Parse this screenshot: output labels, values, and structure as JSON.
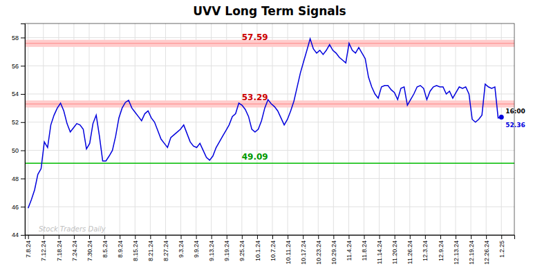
{
  "chart_data": {
    "type": "line",
    "title": "UVV Long Term Signals",
    "series": [
      {
        "name": "UVV",
        "color": "#0000dd",
        "values": [
          45.9,
          46.5,
          47.2,
          48.3,
          48.7,
          50.6,
          50.2,
          51.8,
          52.5,
          53.0,
          53.35,
          52.8,
          51.9,
          51.3,
          51.6,
          51.9,
          51.8,
          51.5,
          50.1,
          50.5,
          51.9,
          52.5,
          51.0,
          49.25,
          49.25,
          49.6,
          50.0,
          51.0,
          52.3,
          53.0,
          53.4,
          53.55,
          53.0,
          52.7,
          52.4,
          52.1,
          52.6,
          52.8,
          52.3,
          52.0,
          51.4,
          50.8,
          50.5,
          50.2,
          50.9,
          51.1,
          51.3,
          51.5,
          51.8,
          51.2,
          50.6,
          50.3,
          50.2,
          50.5,
          50.0,
          49.5,
          49.3,
          49.6,
          50.2,
          50.6,
          51.0,
          51.4,
          51.8,
          52.4,
          52.6,
          53.35,
          53.2,
          52.9,
          52.4,
          51.5,
          51.3,
          51.5,
          52.1,
          53.0,
          53.6,
          53.3,
          53.1,
          52.8,
          52.3,
          51.8,
          52.2,
          52.8,
          53.5,
          54.5,
          55.5,
          56.3,
          57.1,
          57.92,
          57.2,
          56.9,
          57.1,
          56.8,
          57.1,
          57.5,
          57.1,
          56.9,
          56.6,
          56.4,
          56.2,
          57.6,
          57.1,
          56.9,
          57.3,
          56.9,
          56.5,
          55.2,
          54.5,
          54.0,
          53.7,
          54.5,
          54.6,
          54.6,
          54.3,
          54.1,
          53.6,
          54.4,
          54.5,
          53.2,
          53.6,
          54.0,
          54.5,
          54.6,
          54.4,
          53.6,
          54.2,
          54.5,
          54.6,
          54.5,
          54.5,
          54.0,
          54.2,
          53.7,
          54.1,
          54.5,
          54.4,
          54.5,
          54.0,
          52.2,
          52.0,
          52.2,
          52.5,
          54.7,
          54.5,
          54.4,
          54.5,
          52.3,
          52.36
        ]
      }
    ],
    "xlim": [
      -1,
      150
    ],
    "xticks": [
      {
        "value": 0,
        "label": "7.8.24"
      },
      {
        "value": 4.709677419,
        "label": "7.12.24"
      },
      {
        "value": 9.419354839,
        "label": "7.18.24"
      },
      {
        "value": 14.12903226,
        "label": "7.24.24"
      },
      {
        "value": 18.83870968,
        "label": "7.30.24"
      },
      {
        "value": 23.5483871,
        "label": "8.5.24"
      },
      {
        "value": 28.25806452,
        "label": "8.9.24"
      },
      {
        "value": 32.96774194,
        "label": "8.15.24"
      },
      {
        "value": 37.67741935,
        "label": "8.21.24"
      },
      {
        "value": 42.38709677,
        "label": "8.27.24"
      },
      {
        "value": 47.09677419,
        "label": "9.3.24"
      },
      {
        "value": 51.80645161,
        "label": "9.9.24"
      },
      {
        "value": 56.51612903,
        "label": "9.13.24"
      },
      {
        "value": 61.22580645,
        "label": "9.19.24"
      },
      {
        "value": 65.93548387,
        "label": "9.25.24"
      },
      {
        "value": 70.64516129,
        "label": "10.1.24"
      },
      {
        "value": 75.35483871,
        "label": "10.7.24"
      },
      {
        "value": 80.06451613,
        "label": "10.11.24"
      },
      {
        "value": 84.77419355,
        "label": "10.17.24"
      },
      {
        "value": 89.48387097,
        "label": "10.23.24"
      },
      {
        "value": 94.19354839,
        "label": "10.29.24"
      },
      {
        "value": 98.90322581,
        "label": "11.4.24"
      },
      {
        "value": 103.6129032,
        "label": "11.8.24"
      },
      {
        "value": 108.3225806,
        "label": "11.14.24"
      },
      {
        "value": 113.0322581,
        "label": "11.20.24"
      },
      {
        "value": 117.7419355,
        "label": "11.26.24"
      },
      {
        "value": 122.4516129,
        "label": "12.3.24"
      },
      {
        "value": 127.1612903,
        "label": "12.9.24"
      },
      {
        "value": 131.8709677,
        "label": "12.13.24"
      },
      {
        "value": 136.5806452,
        "label": "12.19.24"
      },
      {
        "value": 141.2903226,
        "label": "12.26.24"
      },
      {
        "value": 146,
        "label": "1.2.25"
      }
    ],
    "ylim": [
      44,
      59
    ],
    "yticks": [
      44,
      46,
      48,
      50,
      52,
      54,
      56,
      58
    ],
    "grid": true,
    "reference_lines": [
      {
        "value": 57.59,
        "band": 0.25,
        "color": "#ff8888",
        "band_color": "#ffcccc",
        "label_color": "#cc0000"
      },
      {
        "value": 53.29,
        "band": 0.25,
        "color": "#ff8888",
        "band_color": "#ffcccc",
        "label_color": "#cc0000"
      },
      {
        "value": 49.09,
        "color": "#00bb00",
        "label_color": "#009900"
      }
    ],
    "last_point": {
      "time_label": "16:00",
      "value": 52.36
    },
    "watermark": "Stock Traders Daily"
  }
}
